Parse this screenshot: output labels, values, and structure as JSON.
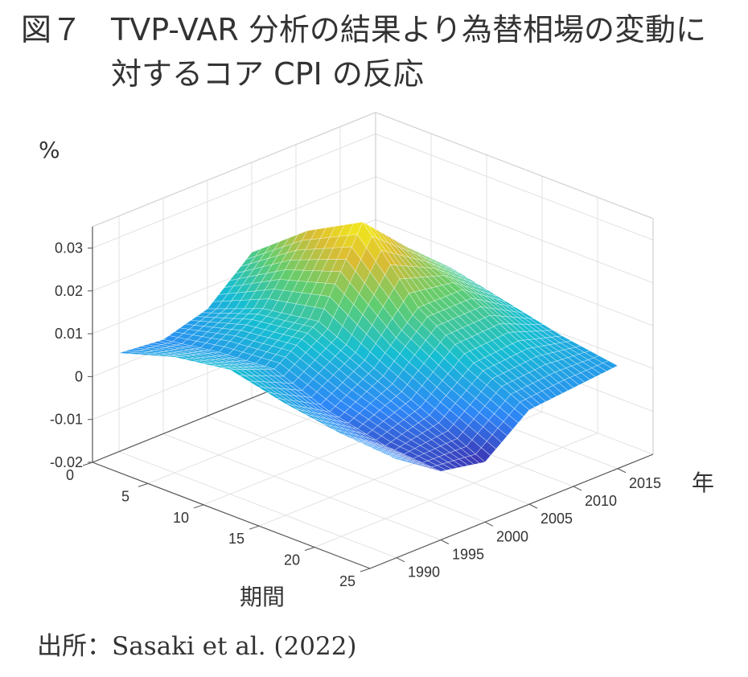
{
  "figure": {
    "label": "図７",
    "title_line1": "TVP-VAR 分析の結果より為替相場の変動に",
    "title_line2": "対するコア CPI の反応",
    "source": "出所：Sasaki et al. (2022)"
  },
  "chart_data": {
    "type": "surface",
    "zlabel": "%",
    "xlabel": "期間",
    "ylabel": "年",
    "x_ticks": [
      0,
      5,
      10,
      15,
      20,
      25
    ],
    "x_range": [
      0,
      25
    ],
    "y_ticks": [
      1990,
      1995,
      2000,
      2005,
      2010,
      2015
    ],
    "y_range": [
      1987,
      2019
    ],
    "z_ticks": [
      -0.02,
      -0.01,
      0,
      0.01,
      0.02,
      0.03
    ],
    "z_tick_labels": [
      "-0.02",
      "-0.01",
      "0",
      "0.01",
      "0.02",
      "0.03"
    ],
    "z_range": [
      -0.02,
      0.035
    ],
    "grid": true,
    "colormap": "parula",
    "x": [
      0,
      5,
      10,
      15,
      20,
      25
    ],
    "y": [
      1990,
      1995,
      2000,
      2005,
      2010,
      2015
    ],
    "z": [
      [
        0.003,
        0.002,
        0.005,
        0.014,
        0.012,
        0.01
      ],
      [
        0.007,
        0.004,
        0.01,
        0.024,
        0.018,
        0.011
      ],
      [
        0.009,
        0.005,
        0.012,
        0.031,
        0.021,
        0.012
      ],
      [
        0.006,
        0.0,
        0.006,
        0.016,
        0.016,
        0.009
      ],
      [
        0.004,
        -0.003,
        0.0,
        0.008,
        0.009,
        0.006
      ],
      [
        0.003,
        -0.004,
        -0.006,
        0.002,
        0.003,
        0.004
      ]
    ]
  }
}
